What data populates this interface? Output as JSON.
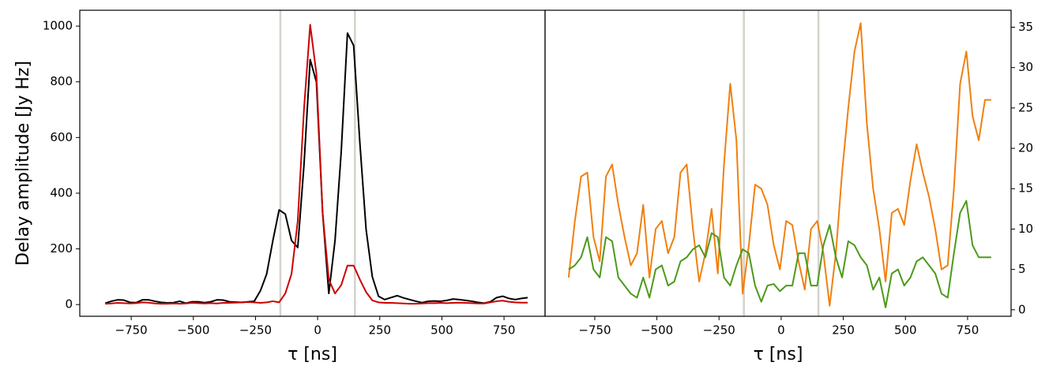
{
  "chart_data": [
    {
      "type": "line",
      "y_label": "Delay amplitude [Jy Hz]",
      "x_label": "τ [ns]",
      "x": [
        -855,
        -830,
        -805,
        -780,
        -755,
        -730,
        -705,
        -680,
        -655,
        -630,
        -605,
        -580,
        -555,
        -530,
        -505,
        -480,
        -455,
        -430,
        -405,
        -380,
        -355,
        -330,
        -305,
        -280,
        -255,
        -230,
        -205,
        -180,
        -155,
        -130,
        -105,
        -80,
        -55,
        -30,
        -5,
        20,
        45,
        70,
        95,
        120,
        145,
        170,
        195,
        220,
        245,
        270,
        295,
        320,
        345,
        370,
        395,
        420,
        445,
        470,
        495,
        520,
        545,
        570,
        595,
        620,
        645,
        670,
        695,
        720,
        745,
        770,
        795,
        820,
        845
      ],
      "series": [
        {
          "color": "#000000",
          "values": [
            5,
            12,
            17,
            16,
            8,
            7,
            17,
            17,
            12,
            8,
            6,
            7,
            12,
            5,
            10,
            10,
            7,
            10,
            17,
            16,
            10,
            9,
            8,
            10,
            12,
            50,
            110,
            230,
            340,
            325,
            230,
            205,
            500,
            880,
            800,
            330,
            40,
            230,
            550,
            975,
            930,
            580,
            270,
            100,
            30,
            18,
            25,
            32,
            24,
            18,
            12,
            7,
            12,
            13,
            12,
            15,
            20,
            18,
            15,
            12,
            8,
            5,
            10,
            25,
            30,
            22,
            18,
            22,
            25
          ]
        },
        {
          "color": "#cc0000",
          "values": [
            3,
            4,
            6,
            5,
            4,
            5,
            8,
            7,
            4,
            3,
            3,
            4,
            3,
            4,
            6,
            5,
            4,
            5,
            4,
            6,
            6,
            7,
            8,
            9,
            8,
            6,
            8,
            12,
            8,
            40,
            110,
            300,
            700,
            1005,
            830,
            330,
            90,
            40,
            70,
            140,
            140,
            90,
            45,
            15,
            8,
            6,
            6,
            5,
            4,
            3,
            3,
            4,
            5,
            5,
            6,
            5,
            6,
            7,
            6,
            5,
            4,
            4,
            8,
            12,
            14,
            10,
            8,
            7,
            7
          ]
        }
      ],
      "vlines": [
        -150,
        150
      ],
      "vline_color": "#d3d3cc",
      "xlim": [
        -957,
        915
      ],
      "ylim": [
        -42,
        1057
      ],
      "xticks": [
        {
          "value": -750,
          "label": "−750"
        },
        {
          "value": -500,
          "label": "−500"
        },
        {
          "value": -250,
          "label": "−250"
        },
        0,
        250,
        500,
        750
      ],
      "yticks": [
        0,
        200,
        400,
        600,
        800,
        1000
      ],
      "y_axis_side": "left"
    },
    {
      "type": "line",
      "x_label": "τ [ns]",
      "x": [
        -855,
        -830,
        -805,
        -780,
        -755,
        -730,
        -705,
        -680,
        -655,
        -630,
        -605,
        -580,
        -555,
        -530,
        -505,
        -480,
        -455,
        -430,
        -405,
        -380,
        -355,
        -330,
        -305,
        -280,
        -255,
        -230,
        -205,
        -180,
        -155,
        -130,
        -105,
        -80,
        -55,
        -30,
        -5,
        20,
        45,
        70,
        95,
        120,
        145,
        170,
        195,
        220,
        245,
        270,
        295,
        320,
        345,
        370,
        395,
        420,
        445,
        470,
        495,
        520,
        545,
        570,
        595,
        620,
        645,
        670,
        695,
        720,
        745,
        770,
        795,
        820,
        845
      ],
      "series": [
        {
          "color": "#f0800f",
          "values": [
            4,
            11,
            16.5,
            17,
            9,
            6,
            16.5,
            18,
            13,
            9,
            5.5,
            7,
            13,
            4,
            10,
            11,
            7,
            9,
            17,
            18,
            10,
            3.5,
            7,
            12.5,
            4.5,
            18,
            28,
            21,
            2,
            8,
            15.5,
            15,
            13,
            8,
            5,
            11,
            10.5,
            6,
            2.5,
            10,
            11,
            7,
            0.5,
            7,
            17,
            25,
            32,
            35.5,
            23,
            15,
            10,
            3.5,
            12,
            12.5,
            10.5,
            16,
            20.5,
            17,
            14,
            10,
            5,
            5.5,
            15,
            28,
            32,
            24,
            21,
            26,
            26
          ]
        },
        {
          "color": "#4c9a1a",
          "values": [
            5,
            5.5,
            6.5,
            9,
            5,
            4,
            9,
            8.5,
            4,
            3,
            2,
            1.5,
            4,
            1.5,
            5,
            5.5,
            3,
            3.5,
            6,
            6.5,
            7.5,
            8,
            6.5,
            9.5,
            9,
            4,
            3,
            5.5,
            7.5,
            7,
            3,
            1,
            3,
            3.2,
            2.3,
            3,
            3,
            7,
            7,
            3,
            3,
            8,
            10.5,
            6.5,
            4,
            8.5,
            8,
            6.5,
            5.5,
            2.5,
            4,
            0.3,
            4.5,
            5,
            3,
            4,
            6,
            6.5,
            5.5,
            4.5,
            2,
            1.5,
            7,
            12,
            13.5,
            8,
            6.5,
            6.5,
            6.5
          ]
        }
      ],
      "vlines": [
        -150,
        150
      ],
      "vline_color": "#d3d3cc",
      "xlim": [
        -950,
        925
      ],
      "ylim": [
        -0.8,
        37.1
      ],
      "xticks": [
        {
          "value": -750,
          "label": "−750"
        },
        {
          "value": -500,
          "label": "−500"
        },
        {
          "value": -250,
          "label": "−250"
        },
        0,
        250,
        500,
        750
      ],
      "yticks": [
        0,
        5,
        10,
        15,
        20,
        25,
        30,
        35
      ],
      "y_axis_side": "right"
    }
  ]
}
